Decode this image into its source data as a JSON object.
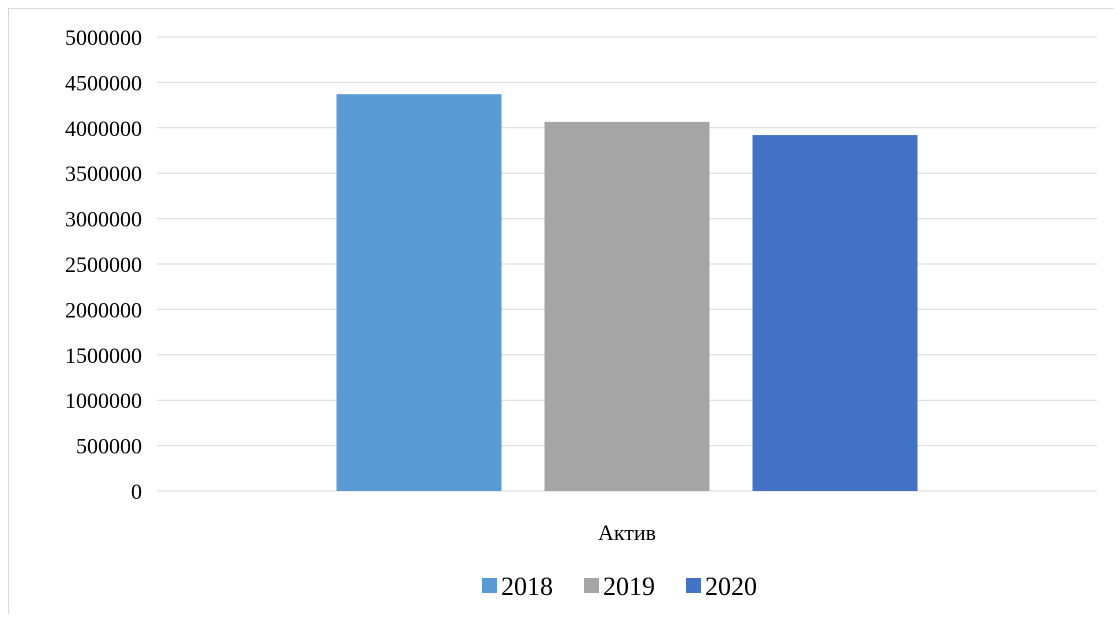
{
  "chart_data": {
    "type": "bar",
    "categories": [
      "Актив"
    ],
    "series": [
      {
        "name": "2018",
        "values": [
          4370000
        ],
        "color": "#5b9bd5"
      },
      {
        "name": "2019",
        "values": [
          4065000
        ],
        "color": "#a5a5a5"
      },
      {
        "name": "2020",
        "values": [
          3920000
        ],
        "color": "#4472c4"
      }
    ],
    "title": "",
    "xlabel": "",
    "ylabel": "",
    "ylim": [
      0,
      5000000
    ],
    "yticks": [
      "0",
      "500000",
      "1000000",
      "1500000",
      "2000000",
      "2500000",
      "3000000",
      "3500000",
      "4000000",
      "4500000",
      "5000000"
    ],
    "grid": true,
    "gridline_color": "#d9d9d9",
    "legend_position": "bottom"
  }
}
